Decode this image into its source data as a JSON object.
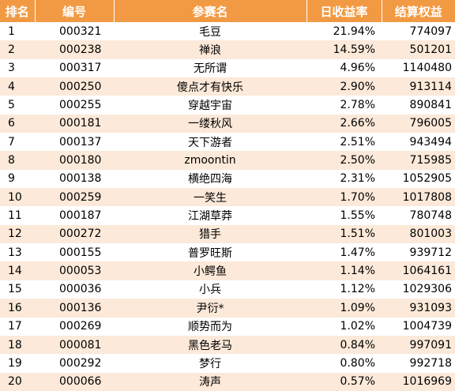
{
  "header": {
    "rank": "排名",
    "code": "编号",
    "name": "参赛名",
    "daily_return": "日收益率",
    "equity": "结算权益"
  },
  "rows": [
    {
      "rank": "1",
      "code": "000321",
      "name": "毛豆",
      "daily_return": "21.94%",
      "equity": "774097"
    },
    {
      "rank": "2",
      "code": "000238",
      "name": "禅浪",
      "daily_return": "14.59%",
      "equity": "501201"
    },
    {
      "rank": "3",
      "code": "000317",
      "name": "无所谓",
      "daily_return": "4.96%",
      "equity": "1140480"
    },
    {
      "rank": "4",
      "code": "000250",
      "name": "傻点才有快乐",
      "daily_return": "2.90%",
      "equity": "913114"
    },
    {
      "rank": "5",
      "code": "000255",
      "name": "穿越宇宙",
      "daily_return": "2.78%",
      "equity": "890841"
    },
    {
      "rank": "6",
      "code": "000181",
      "name": "一缕秋风",
      "daily_return": "2.66%",
      "equity": "796005"
    },
    {
      "rank": "7",
      "code": "000137",
      "name": "天下游者",
      "daily_return": "2.51%",
      "equity": "943494"
    },
    {
      "rank": "8",
      "code": "000180",
      "name": "zmoontin",
      "daily_return": "2.50%",
      "equity": "715985"
    },
    {
      "rank": "9",
      "code": "000138",
      "name": "横绝四海",
      "daily_return": "2.31%",
      "equity": "1052905"
    },
    {
      "rank": "10",
      "code": "000259",
      "name": "一笑生",
      "daily_return": "1.70%",
      "equity": "1017808"
    },
    {
      "rank": "11",
      "code": "000187",
      "name": "江湖草莽",
      "daily_return": "1.55%",
      "equity": "780748"
    },
    {
      "rank": "12",
      "code": "000272",
      "name": "猎手",
      "daily_return": "1.51%",
      "equity": "801003"
    },
    {
      "rank": "13",
      "code": "000155",
      "name": "普罗旺斯",
      "daily_return": "1.47%",
      "equity": "939712"
    },
    {
      "rank": "14",
      "code": "000053",
      "name": "小鳄鱼",
      "daily_return": "1.14%",
      "equity": "1064161"
    },
    {
      "rank": "15",
      "code": "000036",
      "name": "小兵",
      "daily_return": "1.12%",
      "equity": "1029306"
    },
    {
      "rank": "16",
      "code": "000136",
      "name": "尹衍*",
      "daily_return": "1.09%",
      "equity": "931093"
    },
    {
      "rank": "17",
      "code": "000269",
      "name": "顺势而为",
      "daily_return": "1.02%",
      "equity": "1004739"
    },
    {
      "rank": "18",
      "code": "000081",
      "name": "黑色老马",
      "daily_return": "0.84%",
      "equity": "997091"
    },
    {
      "rank": "19",
      "code": "000292",
      "name": "梦行",
      "daily_return": "0.80%",
      "equity": "992718"
    },
    {
      "rank": "20",
      "code": "000066",
      "name": "涛声",
      "daily_return": "0.57%",
      "equity": "1016969"
    }
  ],
  "colors": {
    "header_bg": "#f29a43",
    "header_text": "#ffffff",
    "stripe_bg": "#fce9d9"
  }
}
